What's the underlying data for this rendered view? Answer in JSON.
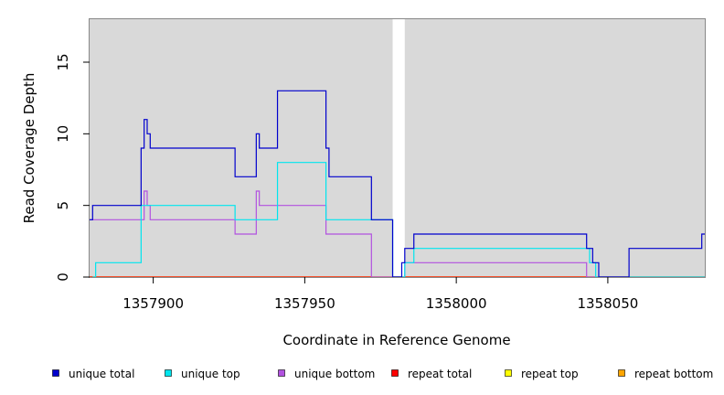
{
  "chart_data": {
    "type": "line",
    "title": "",
    "xlabel": "Coordinate in Reference Genome",
    "ylabel": "Read Coverage Depth",
    "xlim": [
      1357879,
      1358082
    ],
    "ylim": [
      0,
      18
    ],
    "x_ticks": [
      1357900,
      1357950,
      1358000,
      1358050
    ],
    "y_ticks": [
      0,
      5,
      10,
      15
    ],
    "grid": false,
    "shaded_regions": [
      {
        "x": [
          1357879,
          1357979
        ],
        "color": "#d9d9d9"
      },
      {
        "x": [
          1357983,
          1358082
        ],
        "color": "#d9d9d9"
      }
    ],
    "series": [
      {
        "name": "unique total",
        "color": "#0000cd",
        "steps": [
          [
            1357879,
            4
          ],
          [
            1357880,
            5
          ],
          [
            1357896,
            9
          ],
          [
            1357897,
            11
          ],
          [
            1357898,
            10
          ],
          [
            1357899,
            9
          ],
          [
            1357927,
            7
          ],
          [
            1357934,
            10
          ],
          [
            1357935,
            9
          ],
          [
            1357941,
            13
          ],
          [
            1357957,
            9
          ],
          [
            1357958,
            7
          ],
          [
            1357972,
            4
          ],
          [
            1357979,
            0
          ],
          [
            1357982,
            1
          ],
          [
            1357983,
            2
          ],
          [
            1357986,
            3
          ],
          [
            1358043,
            2
          ],
          [
            1358045,
            1
          ],
          [
            1358047,
            0
          ],
          [
            1358057,
            2
          ],
          [
            1358081,
            3
          ],
          [
            1358082,
            3
          ]
        ]
      },
      {
        "name": "unique top",
        "color": "#00e5ee",
        "steps": [
          [
            1357880,
            0
          ],
          [
            1357881,
            1
          ],
          [
            1357896,
            5
          ],
          [
            1357927,
            4
          ],
          [
            1357941,
            8
          ],
          [
            1357957,
            4
          ],
          [
            1357972,
            4
          ],
          [
            1357979,
            0
          ],
          [
            1357983,
            1
          ],
          [
            1357986,
            2
          ],
          [
            1358043,
            2
          ],
          [
            1358044,
            1
          ],
          [
            1358046,
            0
          ],
          [
            1358082,
            0
          ]
        ]
      },
      {
        "name": "unique bottom",
        "color": "#b252e0",
        "steps": [
          [
            1357879,
            4
          ],
          [
            1357896,
            4
          ],
          [
            1357897,
            6
          ],
          [
            1357898,
            5
          ],
          [
            1357899,
            4
          ],
          [
            1357927,
            3
          ],
          [
            1357934,
            6
          ],
          [
            1357935,
            5
          ],
          [
            1357957,
            3
          ],
          [
            1357972,
            0
          ],
          [
            1357982,
            0
          ],
          [
            1357983,
            1
          ],
          [
            1358043,
            0
          ],
          [
            1358082,
            0
          ]
        ]
      },
      {
        "name": "repeat total",
        "color": "#ff0000",
        "steps": [
          [
            1357879,
            0
          ],
          [
            1358082,
            0
          ]
        ]
      },
      {
        "name": "repeat top",
        "color": "#ffff00",
        "steps": [
          [
            1357879,
            0
          ],
          [
            1358082,
            0
          ]
        ]
      },
      {
        "name": "repeat bottom",
        "color": "#ffa500",
        "steps": [
          [
            1357879,
            0
          ],
          [
            1357979,
            0
          ],
          [
            1357983,
            0
          ],
          [
            1358082,
            0
          ]
        ]
      }
    ],
    "legend_position": "bottom"
  }
}
